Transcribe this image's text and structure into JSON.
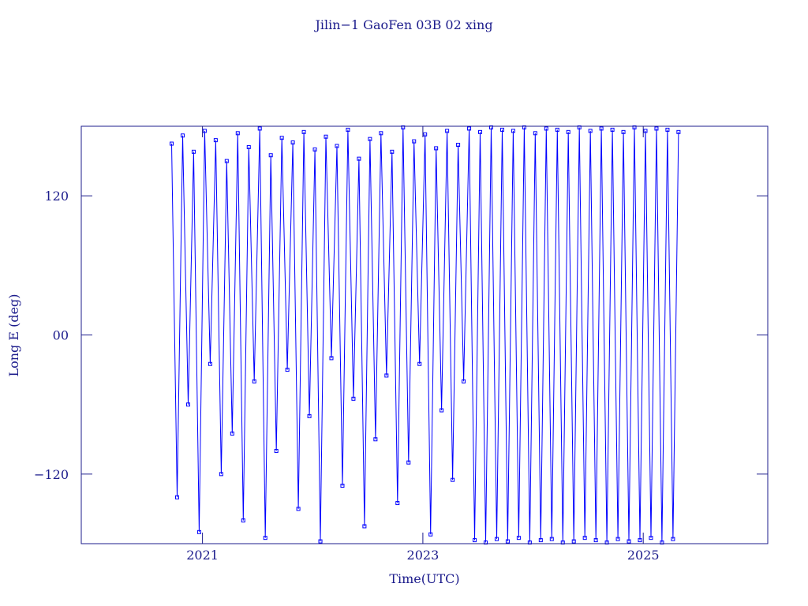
{
  "chart_data": {
    "type": "line",
    "title": "Jilin−1 GaoFen 03B 02 xing",
    "xlabel": "Time(UTC)",
    "ylabel": "Long E (deg)",
    "color": "#0000ff",
    "axis_color": "#1c1c8c",
    "xlim": [
      2019.9,
      2026.13
    ],
    "xticks": [
      2021,
      2023,
      2025
    ],
    "ylim": [
      -180,
      180
    ],
    "yticks": [
      {
        "value": -120,
        "label": "−120"
      },
      {
        "value": 0,
        "label": "00"
      },
      120
    ],
    "x": [
      2020.72,
      2020.77,
      2020.82,
      2020.87,
      2020.92,
      2020.97,
      2021.02,
      2021.07,
      2021.12,
      2021.17,
      2021.22,
      2021.27,
      2021.32,
      2021.37,
      2021.42,
      2021.47,
      2021.52,
      2021.57,
      2021.62,
      2021.67,
      2021.72,
      2021.77,
      2021.82,
      2021.87,
      2021.92,
      2021.97,
      2022.02,
      2022.07,
      2022.12,
      2022.17,
      2022.22,
      2022.27,
      2022.32,
      2022.37,
      2022.42,
      2022.47,
      2022.52,
      2022.57,
      2022.62,
      2022.67,
      2022.72,
      2022.77,
      2022.82,
      2022.87,
      2022.92,
      2022.97,
      2023.02,
      2023.07,
      2023.12,
      2023.17,
      2023.22,
      2023.27,
      2023.32,
      2023.37,
      2023.42,
      2023.47,
      2023.52,
      2023.57,
      2023.62,
      2023.67,
      2023.72,
      2023.77,
      2023.82,
      2023.87,
      2023.92,
      2023.97,
      2024.02,
      2024.07,
      2024.12,
      2024.17,
      2024.22,
      2024.27,
      2024.32,
      2024.37,
      2024.42,
      2024.47,
      2024.52,
      2024.57,
      2024.62,
      2024.67,
      2024.72,
      2024.77,
      2024.82,
      2024.87,
      2024.92,
      2024.97,
      2025.02,
      2025.07,
      2025.12,
      2025.17,
      2025.22,
      2025.27,
      2025.32
    ],
    "values": [
      165,
      -140,
      172,
      -60,
      158,
      -170,
      176,
      -25,
      168,
      -120,
      150,
      -85,
      174,
      -160,
      162,
      -40,
      178,
      -175,
      155,
      -100,
      170,
      -30,
      166,
      -150,
      175,
      -70,
      160,
      -178,
      171,
      -20,
      163,
      -130,
      177,
      -55,
      152,
      -165,
      169,
      -90,
      174,
      -35,
      158,
      -145,
      179,
      -110,
      167,
      -25,
      173,
      -172,
      161,
      -65,
      176,
      -125,
      164,
      -40,
      178,
      -177,
      175,
      -179,
      179,
      -176,
      177,
      -178,
      176,
      -175,
      179,
      -179,
      174,
      -177,
      178,
      -176,
      177,
      -179,
      175,
      -178,
      179,
      -175,
      176,
      -177,
      178,
      -179,
      177,
      -176,
      175,
      -178,
      179,
      -177,
      176,
      -175,
      178,
      -179,
      177,
      -176,
      175
    ]
  }
}
